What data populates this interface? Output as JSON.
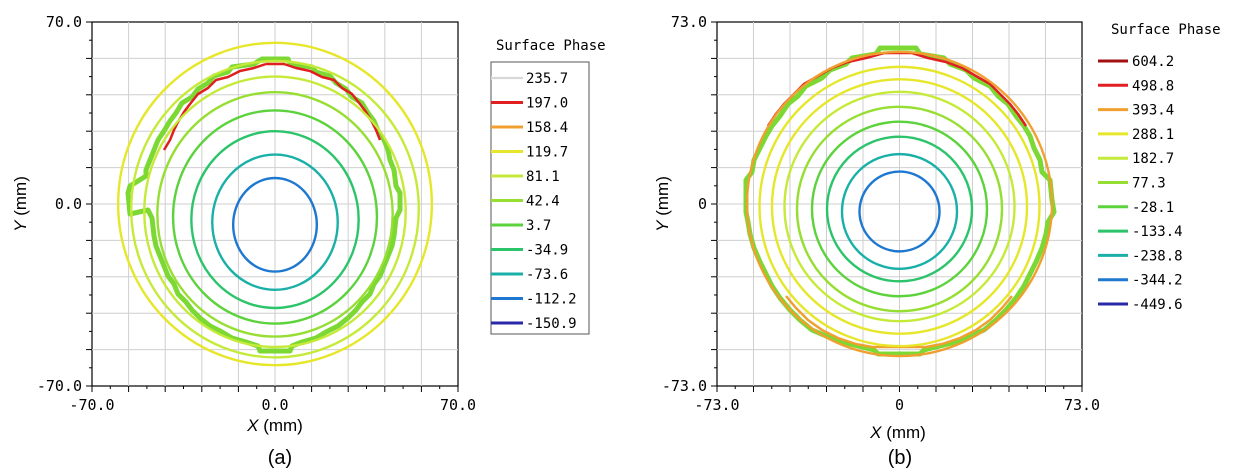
{
  "chart_data": [
    {
      "type": "contour",
      "panel_label": "(a)",
      "x_ticks": [
        "-70.0",
        "0.0",
        "70.0"
      ],
      "y_ticks": [
        "70.0",
        "0.0",
        "-70.0"
      ],
      "xlim": [
        -70,
        70
      ],
      "ylim": [
        -70,
        70
      ],
      "x_var": "X",
      "x_unit": "(mm)",
      "y_var": "Y",
      "y_unit": "(mm)",
      "grid": true,
      "legend": {
        "title": "Surface Phase",
        "placement": "right",
        "levels": [
          235.7,
          197.0,
          158.4,
          119.7,
          81.1,
          42.4,
          3.7,
          -34.9,
          -73.6,
          -112.2,
          -150.9
        ],
        "labels": [
          "235.7",
          "197.0",
          "158.4",
          "119.7",
          "81.1",
          "42.4",
          "3.7",
          "-34.9",
          "-73.6",
          "-112.2",
          "-150.9"
        ],
        "colors": [
          "#f5f5f5",
          "#e02020",
          "#f0a030",
          "#e6e62a",
          "#c6ea3a",
          "#96de32",
          "#5cd23c",
          "#2cc46a",
          "#1ab0a8",
          "#1e78d0",
          "#2828a8"
        ]
      },
      "contours": [
        {
          "level": 119.7,
          "cx": 0,
          "cy": 0,
          "rx": 60,
          "ry": 62,
          "color": "#e6e62a"
        },
        {
          "level": 81.1,
          "cx": 0,
          "cy": -2,
          "rx": 55,
          "ry": 57,
          "color": "#c6ea3a"
        },
        {
          "level": 81.1,
          "cx": 0,
          "cy": -3,
          "rx": 50,
          "ry": 52,
          "color": "#c6ea3a"
        },
        {
          "level": 42.4,
          "cx": 0,
          "cy": -4,
          "rx": 45,
          "ry": 47,
          "color": "#96de32"
        },
        {
          "level": 3.7,
          "cx": 0,
          "cy": -5,
          "rx": 39,
          "ry": 41,
          "color": "#5cd23c"
        },
        {
          "level": -34.9,
          "cx": 0,
          "cy": -6,
          "rx": 32,
          "ry": 34,
          "color": "#2cc46a"
        },
        {
          "level": -73.6,
          "cx": 0,
          "cy": -7,
          "rx": 24,
          "ry": 26,
          "color": "#1ab0a8"
        },
        {
          "level": -112.2,
          "cx": 0,
          "cy": -8,
          "rx": 16,
          "ry": 18,
          "color": "#1e78d0"
        }
      ]
    },
    {
      "type": "contour",
      "panel_label": "(b)",
      "x_ticks": [
        "-73.0",
        "0",
        "73.0"
      ],
      "y_ticks": [
        "73.0",
        "0",
        "-73.0"
      ],
      "xlim": [
        -73,
        73
      ],
      "ylim": [
        -73,
        73
      ],
      "x_var": "X",
      "x_unit": "(mm)",
      "y_var": "Y",
      "y_unit": "(mm)",
      "grid": true,
      "legend": {
        "title": "Surface Phase",
        "placement": "right",
        "levels": [
          604.2,
          498.8,
          393.4,
          288.1,
          182.7,
          77.3,
          -28.1,
          -133.4,
          -238.8,
          -344.2,
          -449.6
        ],
        "labels": [
          "604.2",
          "498.8",
          "393.4",
          "288.1",
          "182.7",
          "77.3",
          "-28.1",
          "-133.4",
          "-238.8",
          "-344.2",
          "-449.6"
        ],
        "colors": [
          "#a01010",
          "#e02020",
          "#f0a030",
          "#e6e62a",
          "#c6ea3a",
          "#96de32",
          "#5cd23c",
          "#2cc46a",
          "#1ab0a8",
          "#1e78d0",
          "#2828a8"
        ]
      },
      "contours": [
        {
          "level": 393.4,
          "cx": 0,
          "cy": 0,
          "rx": 61,
          "ry": 61,
          "color": "#f0a030"
        },
        {
          "level": 288.1,
          "cx": 0,
          "cy": -1,
          "rx": 56,
          "ry": 56,
          "color": "#e6e62a"
        },
        {
          "level": 288.1,
          "cx": 0,
          "cy": -1,
          "rx": 51,
          "ry": 51,
          "color": "#e6e62a"
        },
        {
          "level": 182.7,
          "cx": 0,
          "cy": -1,
          "rx": 46,
          "ry": 46,
          "color": "#c6ea3a"
        },
        {
          "level": 77.3,
          "cx": 0,
          "cy": -2,
          "rx": 41,
          "ry": 41,
          "color": "#96de32"
        },
        {
          "level": -28.1,
          "cx": 0,
          "cy": -2,
          "rx": 35,
          "ry": 35,
          "color": "#5cd23c"
        },
        {
          "level": -133.4,
          "cx": 0,
          "cy": -2,
          "rx": 29,
          "ry": 29,
          "color": "#2cc46a"
        },
        {
          "level": -238.8,
          "cx": 0,
          "cy": -3,
          "rx": 23,
          "ry": 23,
          "color": "#1ab0a8"
        },
        {
          "level": -344.2,
          "cx": 0,
          "cy": -3,
          "rx": 16,
          "ry": 16,
          "color": "#1e78d0"
        }
      ]
    }
  ]
}
